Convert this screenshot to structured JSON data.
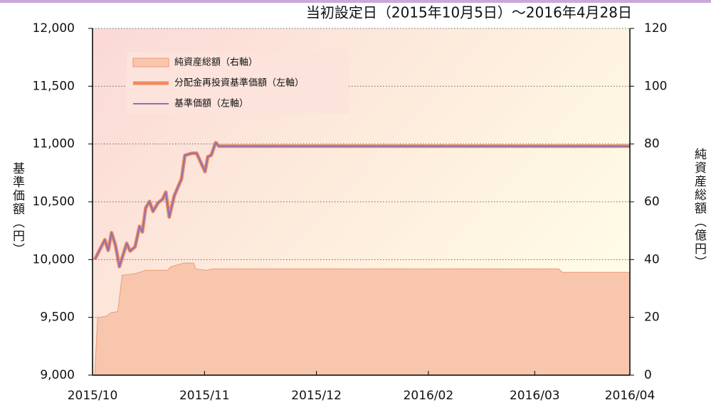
{
  "chart_data": {
    "type": "line",
    "title": "当初設定日（2015年10月5日）～2016年4月28日",
    "ylabel": "基準価額（円）",
    "y2label": "純資産総額（億円）",
    "xlim": [
      0,
      96
    ],
    "xticks": [
      {
        "value": 0,
        "label": "2015/10"
      },
      {
        "value": 20,
        "label": "2015/11"
      },
      {
        "value": 40,
        "label": "2015/12"
      },
      {
        "value": 60,
        "label": "2016/02"
      },
      {
        "value": 79,
        "label": "2016/03"
      },
      {
        "value": 96,
        "label": "2016/04"
      }
    ],
    "ylim": [
      9000,
      12000
    ],
    "yticks": [
      {
        "value": 9000,
        "label": "9,000"
      },
      {
        "value": 9500,
        "label": "9,500"
      },
      {
        "value": 10000,
        "label": "10,000"
      },
      {
        "value": 10500,
        "label": "10,500"
      },
      {
        "value": 11000,
        "label": "11,000"
      },
      {
        "value": 11500,
        "label": "11,500"
      },
      {
        "value": 12000,
        "label": "12,000"
      }
    ],
    "y2lim": [
      0,
      120
    ],
    "y2ticks": [
      0,
      20,
      40,
      60,
      80,
      100,
      120
    ],
    "grid": true,
    "legend": "upper left",
    "series": [
      {
        "name": "純資産総額（右軸）",
        "type": "area",
        "axis": "y2",
        "color": "#f7c6ad",
        "x": [
          0.4,
          0.9,
          2.5,
          3.2,
          4.5,
          5.3,
          7.6,
          9.5,
          13.4,
          14.0,
          16.3,
          18.1,
          18.4,
          20.3,
          21.6,
          83.3,
          83.9,
          96
        ],
        "values": [
          0,
          19.9,
          20.4,
          21.6,
          22,
          34.6,
          35.1,
          36.3,
          36.3,
          37.5,
          38.8,
          38.8,
          36.8,
          36.3,
          36.8,
          36.8,
          35.6,
          35.6
        ]
      },
      {
        "name": "分配金再投資基準価額（左軸）",
        "type": "line",
        "color": "#f08a5d",
        "x": [
          0.4,
          2.2,
          2.8,
          3.4,
          4.1,
          4.8,
          6.1,
          6.7,
          7.6,
          8.4,
          8.9,
          9.5,
          10.2,
          10.8,
          11.7,
          12.5,
          13.1,
          13.7,
          14.6,
          15.9,
          16.5,
          17.8,
          18.6,
          20.1,
          20.6,
          21.2,
          22.0,
          22.6,
          96
        ],
        "values": [
          10000,
          10172,
          10080,
          10233,
          10123,
          9939,
          10141,
          10074,
          10110,
          10288,
          10239,
          10448,
          10503,
          10417,
          10491,
          10521,
          10583,
          10368,
          10552,
          10699,
          10902,
          10920,
          10920,
          10761,
          10890,
          10902,
          11012,
          10981,
          10981
        ]
      },
      {
        "name": "基準価額（左軸）",
        "type": "line",
        "color": "#8a72b8",
        "x": [
          0.4,
          2.2,
          2.8,
          3.4,
          4.1,
          4.8,
          6.1,
          6.7,
          7.6,
          8.4,
          8.9,
          9.5,
          10.2,
          10.8,
          11.7,
          12.5,
          13.1,
          13.7,
          14.6,
          15.9,
          16.5,
          17.8,
          18.6,
          20.1,
          20.6,
          21.2,
          22.0,
          22.6,
          96
        ],
        "values": [
          10000,
          10172,
          10080,
          10233,
          10123,
          9939,
          10141,
          10074,
          10110,
          10288,
          10239,
          10448,
          10503,
          10417,
          10491,
          10521,
          10583,
          10368,
          10552,
          10699,
          10902,
          10920,
          10920,
          10761,
          10890,
          10902,
          11012,
          10981,
          10981
        ]
      }
    ]
  }
}
